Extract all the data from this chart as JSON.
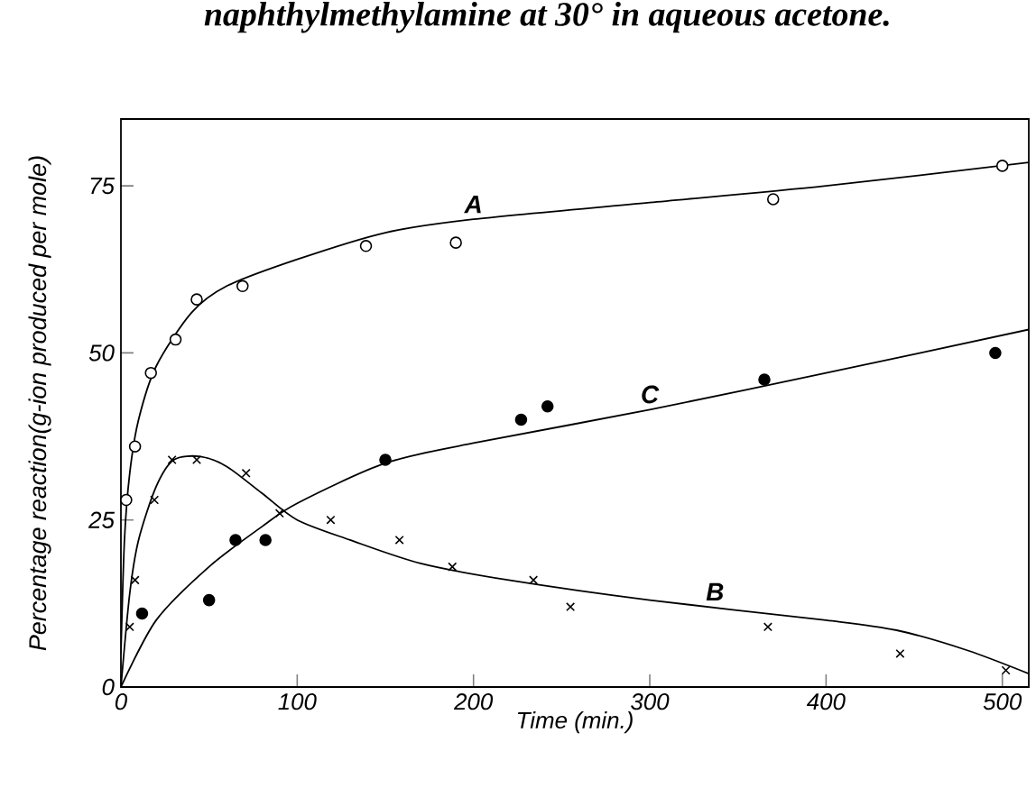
{
  "chart_data": {
    "type": "scatter",
    "title": "naphthylmethylamine at 30° in aqueous acetone.",
    "xlabel": "Time (min.)",
    "ylabel": "Percentage reaction(g-ion produced per mole)",
    "xlim": [
      0,
      515
    ],
    "ylim": [
      0,
      85
    ],
    "xticks": [
      0,
      100,
      200,
      300,
      400,
      500
    ],
    "yticks": [
      0,
      25,
      50,
      75
    ],
    "annotations": [
      {
        "text": "A",
        "x": 200,
        "y": 70
      },
      {
        "text": "B",
        "x": 337,
        "y": 12
      },
      {
        "text": "C",
        "x": 300,
        "y": 41.5
      }
    ],
    "series": [
      {
        "marker": "circle",
        "color": "#ffffff",
        "x": [
          3,
          8,
          17,
          31,
          43,
          69,
          139,
          190,
          370,
          500
        ],
        "values": [
          28,
          36,
          47,
          52,
          58,
          60,
          66,
          66.5,
          73,
          78
        ]
      },
      {
        "marker": "cross",
        "color": "#000000",
        "x": [
          5,
          8,
          19,
          29,
          43,
          71,
          90,
          119,
          158,
          188,
          234,
          255,
          367,
          442,
          502
        ],
        "values": [
          9,
          16,
          28,
          34,
          34,
          32,
          26,
          25,
          22,
          18,
          16,
          12,
          9,
          5,
          2.5
        ]
      },
      {
        "marker": "circle",
        "color": "#000000",
        "x": [
          12,
          50,
          65,
          82,
          150,
          227,
          242,
          365,
          496
        ],
        "values": [
          11,
          13,
          22,
          22,
          34,
          40,
          42,
          46,
          50
        ]
      },
      {
        "type": "line",
        "marker": "none",
        "line_style": "solid",
        "color": "#000000",
        "x": [
          0,
          2,
          5,
          10,
          20,
          40,
          60,
          100,
          150,
          200,
          300,
          400,
          515
        ],
        "values": [
          5,
          22,
          32,
          40,
          48,
          56,
          60,
          64,
          68,
          70,
          72.5,
          75,
          78.5
        ]
      },
      {
        "type": "line",
        "marker": "none",
        "line_style": "solid",
        "color": "#000000",
        "x": [
          0,
          5,
          10,
          20,
          30,
          45,
          60,
          80,
          100,
          130,
          170,
          220,
          300,
          400,
          440,
          480,
          515
        ],
        "values": [
          0,
          14,
          22,
          30,
          34,
          34.5,
          33,
          29,
          25,
          22,
          18.5,
          16,
          13,
          10,
          8.5,
          5.5,
          2
        ]
      },
      {
        "type": "line",
        "marker": "none",
        "line_style": "solid",
        "color": "#000000",
        "x": [
          0,
          20,
          50,
          80,
          100,
          150,
          200,
          300,
          400,
          515
        ],
        "values": [
          0,
          10,
          18,
          24,
          27.5,
          33.5,
          36.5,
          41.5,
          47,
          53.5
        ]
      }
    ]
  }
}
